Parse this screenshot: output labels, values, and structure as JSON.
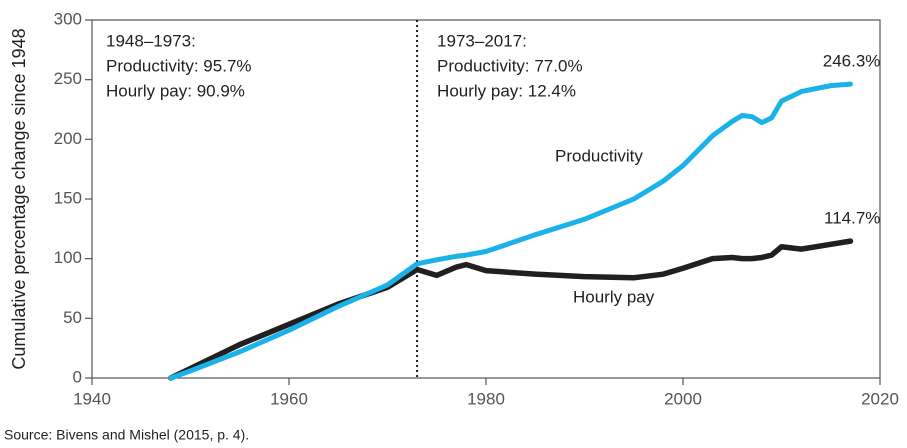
{
  "chart_data": {
    "type": "line",
    "y_label": "Cumulative percentage change since 1948",
    "source": "Source: Bivens and Mishel (2015, p. 4).",
    "x": [
      1948,
      1950,
      1955,
      1960,
      1965,
      1970,
      1973,
      1975,
      1977,
      1978,
      1980,
      1985,
      1990,
      1995,
      1998,
      2000,
      2003,
      2005,
      2006,
      2007,
      2008,
      2009,
      2010,
      2012,
      2015,
      2017
    ],
    "series": [
      {
        "name": "Productivity",
        "color": "#1bb2ea",
        "values": [
          0,
          6,
          22,
          40,
          60,
          78,
          95.7,
          99,
          102,
          103,
          106,
          120,
          133,
          150,
          165,
          178,
          203,
          215,
          220,
          219,
          214,
          218,
          232,
          240,
          245,
          246.3
        ],
        "value_labels": [
          null,
          null,
          null,
          null,
          null,
          null,
          null,
          null,
          null,
          null,
          null,
          null,
          null,
          null,
          null,
          null,
          null,
          null,
          null,
          null,
          null,
          null,
          null,
          null,
          null,
          "246.3%"
        ]
      },
      {
        "name": "Hourly pay",
        "color": "#231f20",
        "values": [
          0,
          8,
          28,
          45,
          62,
          76,
          90.9,
          86,
          93,
          95,
          90,
          87,
          85,
          84,
          87,
          92,
          100,
          101,
          100,
          100,
          101,
          103,
          110,
          108,
          112,
          114.7
        ],
        "value_labels": [
          null,
          null,
          null,
          null,
          null,
          null,
          null,
          null,
          null,
          null,
          null,
          null,
          null,
          null,
          null,
          null,
          null,
          null,
          null,
          null,
          null,
          null,
          null,
          null,
          null,
          "114.7%"
        ]
      }
    ],
    "divider_x": 1973,
    "periods": [
      {
        "label": "1948–1973:",
        "lines": [
          "Productivity: 95.7%",
          "Hourly pay: 90.9%"
        ]
      },
      {
        "label": "1973–2017:",
        "lines": [
          "Productivity: 77.0%",
          "Hourly pay: 12.4%"
        ]
      }
    ],
    "xlim": [
      1940,
      2020
    ],
    "xticks": [
      1940,
      1960,
      1980,
      2000,
      2020
    ],
    "ylim": [
      0,
      300
    ],
    "yticks": [
      0,
      50,
      100,
      150,
      200,
      250,
      300
    ],
    "grid": false
  }
}
